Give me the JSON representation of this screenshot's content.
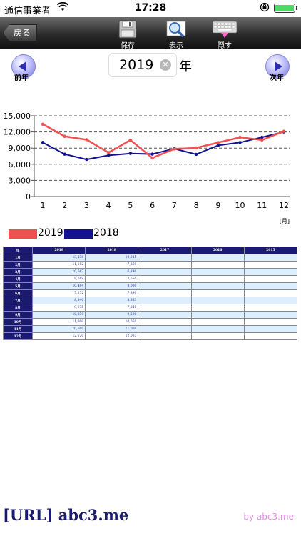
{
  "status": {
    "carrier": "通信事業者",
    "time": "17:28"
  },
  "toolbar": {
    "back_label": "戻る",
    "save_label": "保存",
    "show_label": "表示",
    "hide_label": "隠す"
  },
  "year_selector": {
    "value": "2019",
    "suffix": "年",
    "prev_label": "前年",
    "next_label": "次年"
  },
  "chart_data": {
    "type": "line",
    "x": [
      1,
      2,
      3,
      4,
      5,
      6,
      7,
      8,
      9,
      10,
      11,
      12
    ],
    "xlabel": "[月]",
    "ylim": [
      0,
      15000
    ],
    "yticks": [
      "0",
      "3,000",
      "6,000",
      "9,000",
      "12,000",
      "15,000"
    ],
    "ytick_values": [
      0,
      3000,
      6000,
      9000,
      12000,
      15000
    ],
    "grid": true,
    "legend_position": "bottom-left",
    "series": [
      {
        "name": "2019",
        "color": "#f05050",
        "values": [
          13438,
          11182,
          10567,
          8169,
          10484,
          7172,
          8840,
          9035,
          10030,
          11000,
          10500,
          12120
        ]
      },
      {
        "name": "2018",
        "color": "#121290",
        "values": [
          10045,
          7869,
          6890,
          7650,
          8000,
          7890,
          8883,
          7840,
          9500,
          10050,
          11004,
          12003
        ]
      }
    ]
  },
  "table": {
    "header_corner": "年",
    "year_headers": [
      "2019",
      "2018",
      "2017",
      "2016",
      "2015"
    ],
    "rows": [
      {
        "month": "1月",
        "values": [
          "13,438",
          "10,045",
          "",
          "",
          ""
        ]
      },
      {
        "month": "2月",
        "values": [
          "11,182",
          "7,869",
          "",
          "",
          ""
        ]
      },
      {
        "month": "3月",
        "values": [
          "10,567",
          "6,890",
          "",
          "",
          ""
        ]
      },
      {
        "month": "4月",
        "values": [
          "8,169",
          "7,650",
          "",
          "",
          ""
        ]
      },
      {
        "month": "5月",
        "values": [
          "10,484",
          "8,000",
          "",
          "",
          ""
        ]
      },
      {
        "month": "6月",
        "values": [
          "7,172",
          "7,890",
          "",
          "",
          ""
        ]
      },
      {
        "month": "7月",
        "values": [
          "8,840",
          "8,883",
          "",
          "",
          ""
        ]
      },
      {
        "month": "8月",
        "values": [
          "9,035",
          "7,840",
          "",
          "",
          ""
        ]
      },
      {
        "month": "9月",
        "values": [
          "10,030",
          "9,500",
          "",
          "",
          ""
        ]
      },
      {
        "month": "10月",
        "values": [
          "11,000",
          "10,050",
          "",
          "",
          ""
        ]
      },
      {
        "month": "11月",
        "values": [
          "10,500",
          "11,004",
          "",
          "",
          ""
        ]
      },
      {
        "month": "12月",
        "values": [
          "12,120",
          "12,003",
          "",
          "",
          ""
        ]
      }
    ]
  },
  "footer": {
    "url_text": "[URL] abc3.me",
    "by_text": "by abc3.me"
  },
  "colors": {
    "toolbar_bg": "#2b2b2b",
    "header_navy": "#1a1a6e",
    "row_tint": "#ddeeff",
    "series_2019": "#f05050",
    "series_2018": "#121290"
  }
}
